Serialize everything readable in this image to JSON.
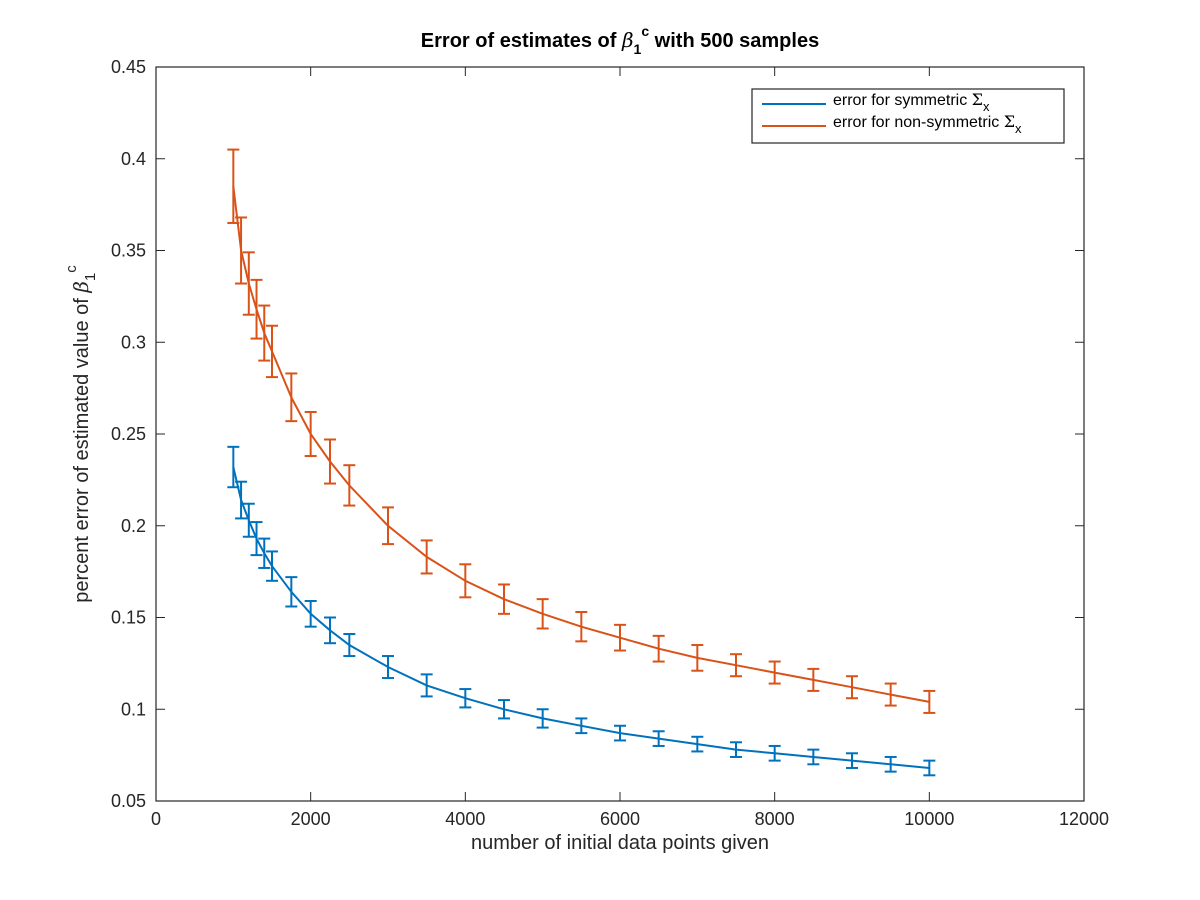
{
  "chart_data": {
    "type": "line",
    "subtype": "errorbar",
    "title": {
      "prefix": "Error of estimates of ",
      "symbol": "β",
      "symbol_subscript": "1",
      "symbol_superscript": "c",
      "suffix": " with 500 samples"
    },
    "xlabel": "number of initial data points given",
    "ylabel": {
      "text": "percent error of estimated value of ",
      "symbol": "β",
      "symbol_subscript": "1",
      "symbol_superscript": "c"
    },
    "xlim": [
      0,
      12000
    ],
    "ylim": [
      0.05,
      0.45
    ],
    "x_ticks": [
      "0",
      "2000",
      "4000",
      "6000",
      "8000",
      "10000",
      "12000"
    ],
    "y_ticks": [
      "0.05",
      "0.1",
      "0.15",
      "0.2",
      "0.25",
      "0.3",
      "0.35",
      "0.4",
      "0.45"
    ],
    "grid": false,
    "legend_position": "top-right",
    "series": [
      {
        "name": {
          "text": "error for symmetric ",
          "symbol": "Σ",
          "subscript": "x"
        },
        "color": "#0072BD",
        "x": [
          1000,
          1100,
          1200,
          1300,
          1400,
          1500,
          1750,
          2000,
          2250,
          2500,
          3000,
          3500,
          4000,
          4500,
          5000,
          5500,
          6000,
          6500,
          7000,
          7500,
          8000,
          8500,
          9000,
          9500,
          10000
        ],
        "y": [
          0.232,
          0.214,
          0.203,
          0.193,
          0.185,
          0.178,
          0.164,
          0.152,
          0.143,
          0.135,
          0.123,
          0.113,
          0.106,
          0.1,
          0.095,
          0.091,
          0.087,
          0.084,
          0.081,
          0.078,
          0.076,
          0.074,
          0.072,
          0.07,
          0.068
        ],
        "err": [
          0.011,
          0.01,
          0.009,
          0.009,
          0.008,
          0.008,
          0.008,
          0.007,
          0.007,
          0.006,
          0.006,
          0.006,
          0.005,
          0.005,
          0.005,
          0.004,
          0.004,
          0.004,
          0.004,
          0.004,
          0.004,
          0.004,
          0.004,
          0.004,
          0.004
        ]
      },
      {
        "name": {
          "text": "error for non-symmetric ",
          "symbol": "Σ",
          "subscript": "x"
        },
        "color": "#D95319",
        "x": [
          1000,
          1100,
          1200,
          1300,
          1400,
          1500,
          1750,
          2000,
          2250,
          2500,
          3000,
          3500,
          4000,
          4500,
          5000,
          5500,
          6000,
          6500,
          7000,
          7500,
          8000,
          8500,
          9000,
          9500,
          10000
        ],
        "y": [
          0.385,
          0.35,
          0.332,
          0.318,
          0.305,
          0.295,
          0.27,
          0.25,
          0.235,
          0.222,
          0.2,
          0.183,
          0.17,
          0.16,
          0.152,
          0.145,
          0.139,
          0.133,
          0.128,
          0.124,
          0.12,
          0.116,
          0.112,
          0.108,
          0.104
        ],
        "err": [
          0.02,
          0.018,
          0.017,
          0.016,
          0.015,
          0.014,
          0.013,
          0.012,
          0.012,
          0.011,
          0.01,
          0.009,
          0.009,
          0.008,
          0.008,
          0.008,
          0.007,
          0.007,
          0.007,
          0.006,
          0.006,
          0.006,
          0.006,
          0.006,
          0.006
        ]
      }
    ]
  }
}
